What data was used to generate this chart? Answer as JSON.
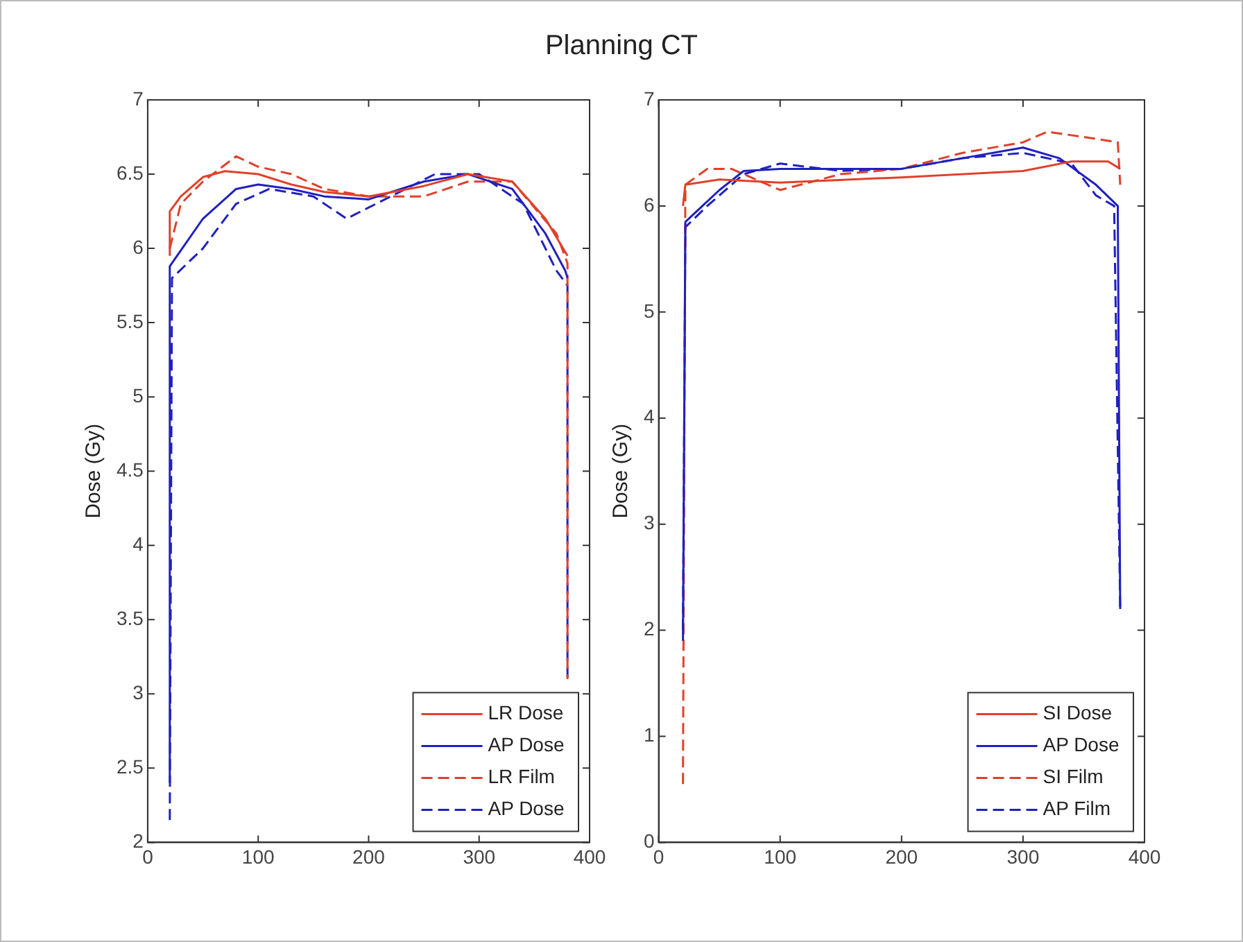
{
  "chart_data": [
    {
      "type": "line",
      "title": "Planning CT",
      "ylabel": "Dose (Gy)",
      "xlim": [
        0,
        400
      ],
      "xticks": [
        0,
        100,
        200,
        300,
        400
      ],
      "ylim": [
        2,
        7
      ],
      "yticks": [
        2,
        2.5,
        3,
        3.5,
        4,
        4.5,
        5,
        5.5,
        6,
        6.5,
        7
      ],
      "legend": "bottom right",
      "series": [
        {
          "name": "LR Dose",
          "color": "#e0402a",
          "line_style": "solid",
          "x": [
            20,
            20,
            30,
            50,
            70,
            100,
            130,
            160,
            200,
            250,
            290,
            330,
            360,
            380
          ],
          "values": [
            5.95,
            6.25,
            6.35,
            6.48,
            6.52,
            6.5,
            6.43,
            6.38,
            6.35,
            6.42,
            6.5,
            6.45,
            6.2,
            5.95
          ]
        },
        {
          "name": "AP Dose",
          "color": "#2020c0",
          "line_style": "solid",
          "x": [
            20,
            20,
            50,
            80,
            100,
            130,
            160,
            200,
            250,
            290,
            330,
            360,
            378,
            380
          ],
          "values": [
            2.4,
            5.88,
            6.2,
            6.4,
            6.43,
            6.4,
            6.35,
            6.33,
            6.45,
            6.5,
            6.4,
            6.1,
            5.85,
            5.8
          ]
        },
        {
          "name": "LR Film",
          "color": "#e0402a",
          "line_style": "dashed",
          "x": [
            20,
            30,
            50,
            80,
            100,
            130,
            160,
            200,
            250,
            290,
            330,
            370,
            380,
            380
          ],
          "values": [
            6.0,
            6.3,
            6.45,
            6.62,
            6.55,
            6.5,
            6.4,
            6.35,
            6.35,
            6.45,
            6.45,
            6.1,
            5.9,
            3.1
          ]
        },
        {
          "name": "AP Dose",
          "color": "#2020c0",
          "line_style": "dashed",
          "x": [
            20,
            22,
            50,
            80,
            110,
            150,
            180,
            220,
            260,
            300,
            340,
            370,
            380,
            380
          ],
          "values": [
            2.15,
            5.8,
            6.0,
            6.3,
            6.4,
            6.35,
            6.2,
            6.35,
            6.5,
            6.5,
            6.3,
            5.85,
            5.75,
            3.1
          ]
        }
      ]
    },
    {
      "type": "line",
      "ylabel": "Dose (Gy)",
      "xlim": [
        0,
        400
      ],
      "xticks": [
        0,
        100,
        200,
        300,
        400
      ],
      "ylim": [
        0,
        7
      ],
      "yticks": [
        0,
        1,
        2,
        3,
        4,
        5,
        6,
        7
      ],
      "legend": "bottom right",
      "series": [
        {
          "name": "SI Dose",
          "color": "#e0402a",
          "line_style": "solid",
          "x": [
            20,
            22,
            50,
            100,
            200,
            300,
            340,
            370,
            380
          ],
          "values": [
            6.0,
            6.2,
            6.25,
            6.22,
            6.27,
            6.33,
            6.42,
            6.42,
            6.35
          ]
        },
        {
          "name": "AP Dose",
          "color": "#2020c0",
          "line_style": "solid",
          "x": [
            20,
            22,
            50,
            70,
            100,
            200,
            250,
            300,
            330,
            360,
            378,
            380
          ],
          "values": [
            1.9,
            5.85,
            6.15,
            6.33,
            6.35,
            6.35,
            6.45,
            6.55,
            6.45,
            6.2,
            6.0,
            2.2
          ]
        },
        {
          "name": "SI Film",
          "color": "#e0402a",
          "line_style": "dashed",
          "x": [
            20,
            22,
            40,
            60,
            80,
            100,
            150,
            200,
            250,
            300,
            320,
            350,
            378,
            380
          ],
          "values": [
            0.55,
            6.2,
            6.35,
            6.35,
            6.25,
            6.15,
            6.3,
            6.35,
            6.5,
            6.6,
            6.7,
            6.65,
            6.6,
            6.2
          ]
        },
        {
          "name": "AP Film",
          "color": "#2020c0",
          "line_style": "dashed",
          "x": [
            20,
            22,
            40,
            70,
            100,
            150,
            200,
            250,
            300,
            340,
            360,
            375,
            380
          ],
          "values": [
            2.0,
            5.8,
            6.0,
            6.3,
            6.4,
            6.33,
            6.35,
            6.45,
            6.5,
            6.4,
            6.1,
            6.0,
            2.2
          ]
        }
      ]
    }
  ]
}
